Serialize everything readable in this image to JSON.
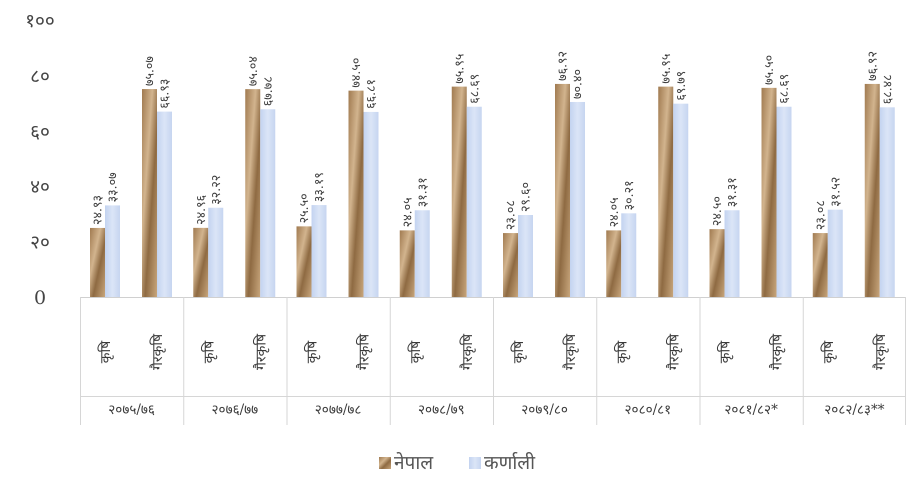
{
  "chart_data": {
    "type": "bar",
    "title": "",
    "xlabel": "",
    "ylabel": "",
    "ylim": [
      0,
      100
    ],
    "yticks": [
      "0",
      "२०",
      "४०",
      "६०",
      "८०",
      "१००"
    ],
    "groups": [
      "२०७५/७६",
      "२०७६/७७",
      "२०७७/७८",
      "२०७८/७९",
      "२०७९/८०",
      "२०८०/८१",
      "२०८१/८२*",
      "२०८२/८३**"
    ],
    "categories": [
      "कृषि",
      "गैरकृषि"
    ],
    "series": [
      {
        "name": "नेपाल",
        "color": "#b8946a",
        "values": [
          [
            24.93,
            75.07
          ],
          [
            24.96,
            75.04
          ],
          [
            25.5,
            74.5
          ],
          [
            24.05,
            75.95
          ],
          [
            23.08,
            76.92
          ],
          [
            24.05,
            75.95
          ],
          [
            24.5,
            75.5
          ],
          [
            23.08,
            76.92
          ]
        ],
        "labels": [
          [
            "२४.९३",
            "७५.०७"
          ],
          [
            "२४.९६",
            "७५.०४"
          ],
          [
            "२५.५०",
            "७४.५०"
          ],
          [
            "२४.०५",
            "७५.९५"
          ],
          [
            "२३.०८",
            "७६.९२"
          ],
          [
            "२४.०५",
            "७५.९५"
          ],
          [
            "२४.५०",
            "७५.५०"
          ],
          [
            "२३.०८",
            "७६.९२"
          ]
        ]
      },
      {
        "name": "कर्णाली",
        "color": "#c9d8f2",
        "values": [
          [
            33.07,
            66.93
          ],
          [
            32.22,
            67.78
          ],
          [
            33.19,
            66.81
          ],
          [
            31.31,
            68.69
          ],
          [
            29.6,
            70.4
          ],
          [
            30.21,
            69.79
          ],
          [
            31.31,
            68.69
          ],
          [
            31.52,
            68.48
          ]
        ],
        "labels": [
          [
            "३३.०७",
            "६६.९३"
          ],
          [
            "३२.२२",
            "६७.७८"
          ],
          [
            "३३.१९",
            "६६.८१"
          ],
          [
            "३१.३१",
            "६८.६९"
          ],
          [
            "२९.६०",
            "७०.४०"
          ],
          [
            "३०.२१",
            "६९.७९"
          ],
          [
            "३१.३१",
            "६८.६९"
          ],
          [
            "३१.५२",
            "६८.४८"
          ]
        ]
      }
    ],
    "legend_position": "bottom",
    "grid": false
  }
}
